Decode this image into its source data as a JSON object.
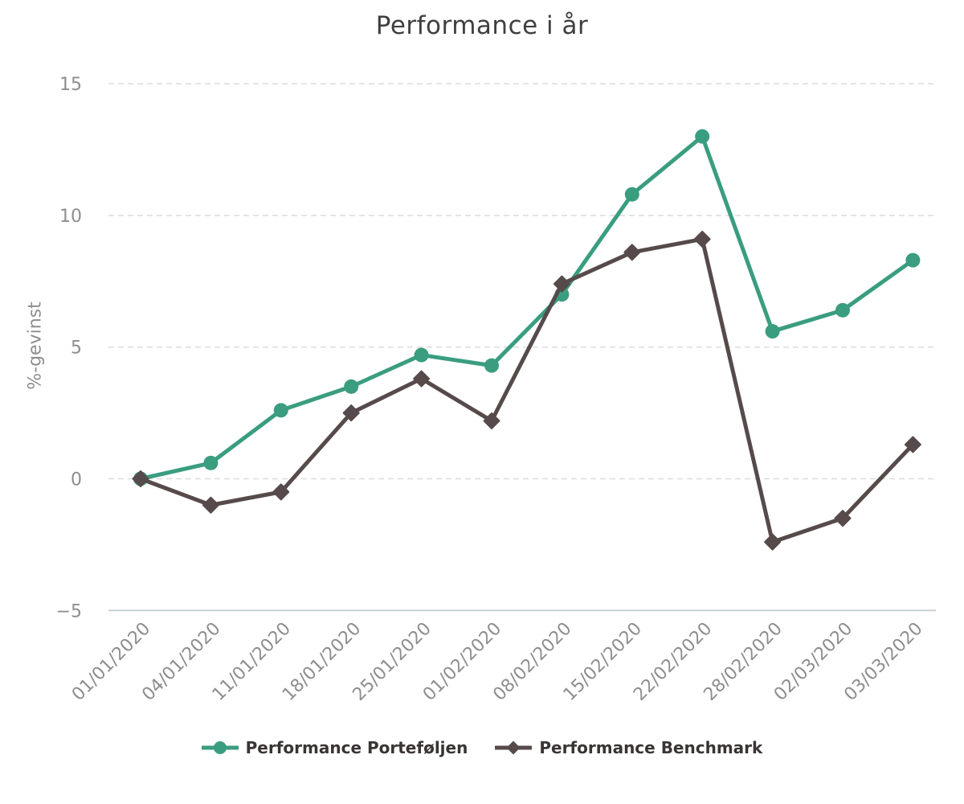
{
  "chart_data": {
    "type": "line",
    "title": "Performance i år",
    "ylabel": "%-gevinst",
    "xlabel": "",
    "categories": [
      "01/01/2020",
      "04/01/2020",
      "11/01/2020",
      "18/01/2020",
      "25/01/2020",
      "01/02/2020",
      "08/02/2020",
      "15/02/2020",
      "22/02/2020",
      "28/02/2020",
      "02/03/2020",
      "03/03/2020"
    ],
    "series": [
      {
        "name": "Performance Porteføljen",
        "color": "#3a9d80",
        "marker": "circle",
        "values": [
          0,
          0.6,
          2.6,
          3.5,
          4.7,
          4.3,
          7.0,
          10.8,
          13.0,
          5.6,
          6.4,
          8.3
        ]
      },
      {
        "name": "Performance Benchmark",
        "color": "#564a4a",
        "marker": "diamond",
        "values": [
          0,
          -1.0,
          -0.5,
          2.5,
          3.8,
          2.2,
          7.4,
          8.6,
          9.1,
          -2.4,
          -1.5,
          1.3
        ]
      }
    ],
    "ylim": [
      -5,
      15
    ],
    "ytick_values": [
      15,
      10,
      5,
      0,
      -5
    ],
    "ytick_labels": [
      "15",
      "10",
      "5",
      "0",
      "−5"
    ],
    "grid": "horizontal-dashed",
    "legend_position": "bottom"
  },
  "colors": {
    "grid_line": "#dcdcdc",
    "axis_line": "#c8d1d3",
    "tick_text": "#8e8e8e",
    "title_text": "#3f3f3f",
    "legend_text": "#3a3434",
    "background": "#ffffff"
  }
}
